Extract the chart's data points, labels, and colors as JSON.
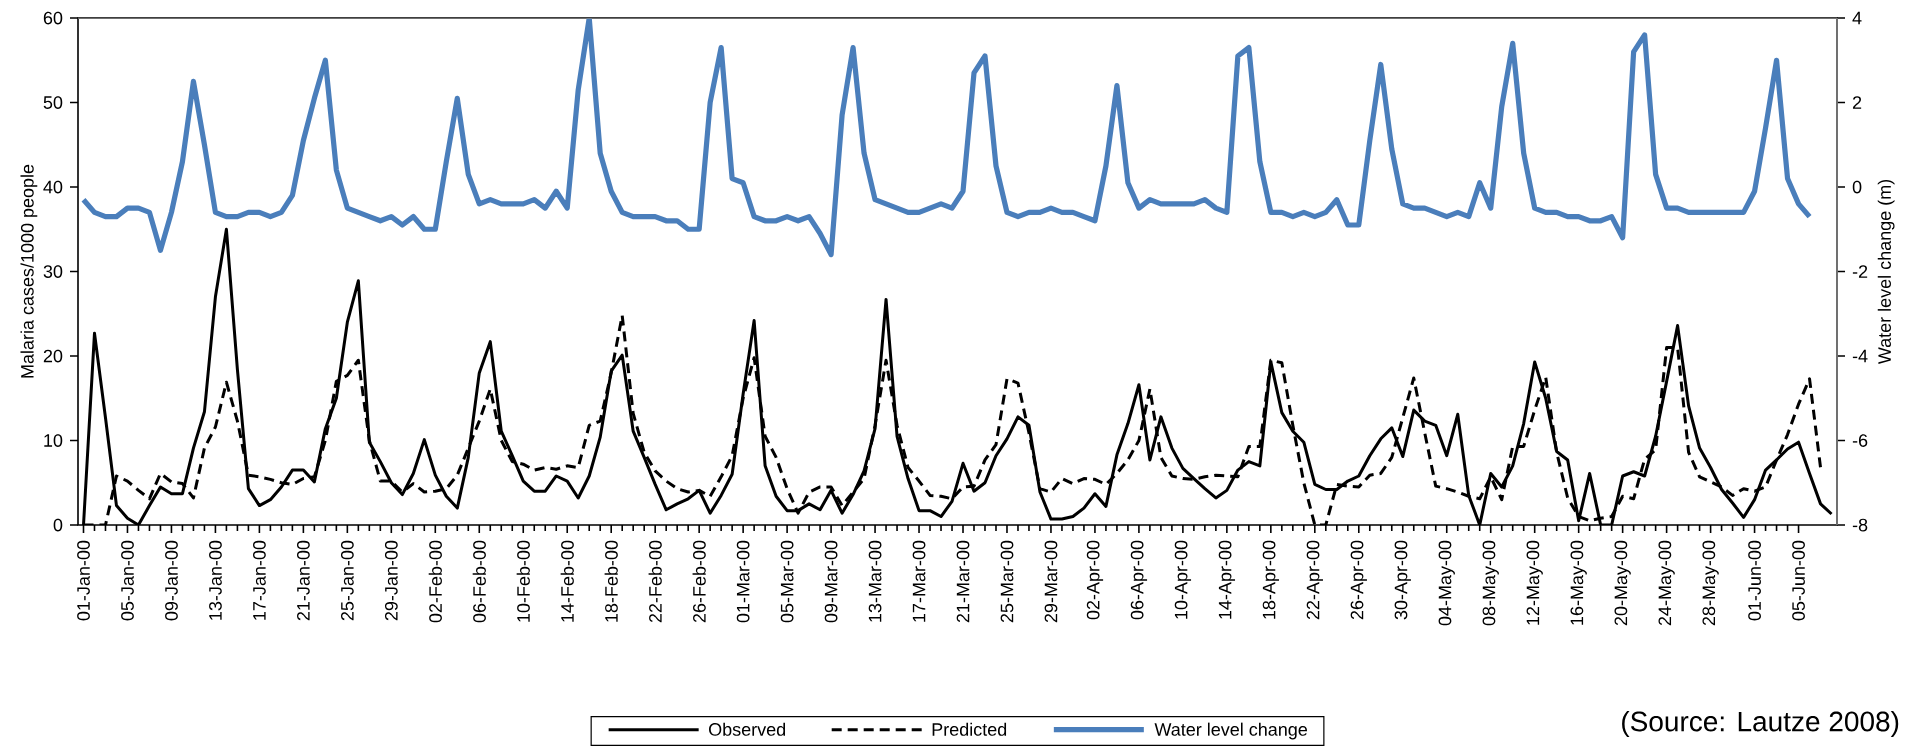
{
  "chart_data": {
    "type": "line",
    "xlabel": null,
    "ylabel": "Malaria cases/1000 people",
    "y2label": "Water level change (m)",
    "annotations": [
      "(Source: Lautze 2008)"
    ],
    "legend": "bottom",
    "xlim": [
      "1999-12-31T12:00",
      "2000-06-08T12:00"
    ],
    "ylim": [
      0,
      60
    ],
    "yticks": [
      0,
      10,
      20,
      30,
      40,
      50,
      60
    ],
    "y2lim": [
      -8,
      4
    ],
    "y2ticks": [
      -8,
      -6,
      -4,
      -2,
      0,
      2,
      4
    ],
    "xticks": [
      {
        "value": "2000-01-01",
        "label": "01-Jan-00"
      },
      {
        "value": "2000-01-05",
        "label": "05-Jan-00"
      },
      {
        "value": "2000-01-09",
        "label": "09-Jan-00"
      },
      {
        "value": "2000-01-13",
        "label": "13-Jan-00"
      },
      {
        "value": "2000-01-17",
        "label": "17-Jan-00"
      },
      {
        "value": "2000-01-21",
        "label": "21-Jan-00"
      },
      {
        "value": "2000-01-25",
        "label": "25-Jan-00"
      },
      {
        "value": "2000-01-29",
        "label": "29-Jan-00"
      },
      {
        "value": "2000-02-02",
        "label": "02-Feb-00"
      },
      {
        "value": "2000-02-06",
        "label": "06-Feb-00"
      },
      {
        "value": "2000-02-10",
        "label": "10-Feb-00"
      },
      {
        "value": "2000-02-14",
        "label": "14-Feb-00"
      },
      {
        "value": "2000-02-18",
        "label": "18-Feb-00"
      },
      {
        "value": "2000-02-22",
        "label": "22-Feb-00"
      },
      {
        "value": "2000-02-26",
        "label": "26-Feb-00"
      },
      {
        "value": "2000-03-01",
        "label": "01-Mar-00"
      },
      {
        "value": "2000-03-05",
        "label": "05-Mar-00"
      },
      {
        "value": "2000-03-09",
        "label": "09-Mar-00"
      },
      {
        "value": "2000-03-13",
        "label": "13-Mar-00"
      },
      {
        "value": "2000-03-17",
        "label": "17-Mar-00"
      },
      {
        "value": "2000-03-21",
        "label": "21-Mar-00"
      },
      {
        "value": "2000-03-25",
        "label": "25-Mar-00"
      },
      {
        "value": "2000-03-29",
        "label": "29-Mar-00"
      },
      {
        "value": "2000-04-02",
        "label": "02-Apr-00"
      },
      {
        "value": "2000-04-06",
        "label": "06-Apr-00"
      },
      {
        "value": "2000-04-10",
        "label": "10-Apr-00"
      },
      {
        "value": "2000-04-14",
        "label": "14-Apr-00"
      },
      {
        "value": "2000-04-18",
        "label": "18-Apr-00"
      },
      {
        "value": "2000-04-22",
        "label": "22-Apr-00"
      },
      {
        "value": "2000-04-26",
        "label": "26-Apr-00"
      },
      {
        "value": "2000-04-30",
        "label": "30-Apr-00"
      },
      {
        "value": "2000-05-04",
        "label": "04-May-00"
      },
      {
        "value": "2000-05-08",
        "label": "08-May-00"
      },
      {
        "value": "2000-05-12",
        "label": "12-May-00"
      },
      {
        "value": "2000-05-16",
        "label": "16-May-00"
      },
      {
        "value": "2000-05-20",
        "label": "20-May-00"
      },
      {
        "value": "2000-05-24",
        "label": "24-May-00"
      },
      {
        "value": "2000-05-28",
        "label": "28-May-00"
      },
      {
        "value": "2000-06-01",
        "label": "01-Jun-00"
      },
      {
        "value": "2000-06-05",
        "label": "05-Jun-00"
      }
    ],
    "x": [
      "2000-01-01",
      "2000-01-02",
      "2000-01-03",
      "2000-01-04",
      "2000-01-05",
      "2000-01-06",
      "2000-01-07",
      "2000-01-08",
      "2000-01-09",
      "2000-01-10",
      "2000-01-11",
      "2000-01-12",
      "2000-01-13",
      "2000-01-14",
      "2000-01-15",
      "2000-01-16",
      "2000-01-17",
      "2000-01-18",
      "2000-01-19",
      "2000-01-20",
      "2000-01-21",
      "2000-01-22",
      "2000-01-23",
      "2000-01-24",
      "2000-01-25",
      "2000-01-26",
      "2000-01-27",
      "2000-01-28",
      "2000-01-29",
      "2000-01-30",
      "2000-01-31",
      "2000-02-01",
      "2000-02-02",
      "2000-02-03",
      "2000-02-04",
      "2000-02-05",
      "2000-02-06",
      "2000-02-07",
      "2000-02-08",
      "2000-02-09",
      "2000-02-10",
      "2000-02-11",
      "2000-02-12",
      "2000-02-13",
      "2000-02-14",
      "2000-02-15",
      "2000-02-16",
      "2000-02-17",
      "2000-02-18",
      "2000-02-19",
      "2000-02-20",
      "2000-02-21",
      "2000-02-22",
      "2000-02-23",
      "2000-02-24",
      "2000-02-25",
      "2000-02-26",
      "2000-02-27",
      "2000-02-28",
      "2000-02-29",
      "2000-03-01",
      "2000-03-02",
      "2000-03-03",
      "2000-03-04",
      "2000-03-05",
      "2000-03-06",
      "2000-03-07",
      "2000-03-08",
      "2000-03-09",
      "2000-03-10",
      "2000-03-11",
      "2000-03-12",
      "2000-03-13",
      "2000-03-14",
      "2000-03-15",
      "2000-03-16",
      "2000-03-17",
      "2000-03-18",
      "2000-03-19",
      "2000-03-20",
      "2000-03-21",
      "2000-03-22",
      "2000-03-23",
      "2000-03-24",
      "2000-03-25",
      "2000-03-26",
      "2000-03-27",
      "2000-03-28",
      "2000-03-29",
      "2000-03-30",
      "2000-03-31",
      "2000-04-01",
      "2000-04-02",
      "2000-04-03",
      "2000-04-04",
      "2000-04-05",
      "2000-04-06",
      "2000-04-07",
      "2000-04-08",
      "2000-04-09",
      "2000-04-10",
      "2000-04-11",
      "2000-04-12",
      "2000-04-13",
      "2000-04-14",
      "2000-04-15",
      "2000-04-16",
      "2000-04-17",
      "2000-04-18",
      "2000-04-19",
      "2000-04-20",
      "2000-04-21",
      "2000-04-22",
      "2000-04-23",
      "2000-04-24",
      "2000-04-25",
      "2000-04-26",
      "2000-04-27",
      "2000-04-28",
      "2000-04-29",
      "2000-04-30",
      "2000-05-01",
      "2000-05-02",
      "2000-05-03",
      "2000-05-04",
      "2000-05-05",
      "2000-05-06",
      "2000-05-07",
      "2000-05-08",
      "2000-05-09",
      "2000-05-10",
      "2000-05-11",
      "2000-05-12",
      "2000-05-13",
      "2000-05-14",
      "2000-05-15",
      "2000-05-16",
      "2000-05-17",
      "2000-05-18",
      "2000-05-19",
      "2000-05-20",
      "2000-05-21",
      "2000-05-22",
      "2000-05-23",
      "2000-05-24",
      "2000-05-25",
      "2000-05-26",
      "2000-05-27",
      "2000-05-28",
      "2000-05-29",
      "2000-05-30",
      "2000-05-31",
      "2000-06-01",
      "2000-06-02",
      "2000-06-03",
      "2000-06-04",
      "2000-06-05",
      "2000-06-06",
      "2000-06-07",
      "2000-06-08"
    ],
    "series": [
      {
        "name": "Observed",
        "color": "#000000",
        "line_style": "solid",
        "values": [
          0,
          22.7,
          12.7,
          2.3,
          0.8,
          0,
          2.3,
          4.5,
          3.7,
          3.7,
          9.1,
          13.4,
          27,
          35,
          18.4,
          4.3,
          2.3,
          3.0,
          4.5,
          6.5,
          6.5,
          5.1,
          11.4,
          15,
          24,
          28.9,
          9.8,
          7.5,
          5,
          3.6,
          6.1,
          10.1,
          5.9,
          3.4,
          2.0,
          8,
          18,
          21.7,
          11.1,
          8.2,
          5.2,
          4.0,
          4.0,
          5.8,
          5.2,
          3.2,
          5.8,
          10.4,
          18.2,
          20.1,
          11.1,
          8,
          4.8,
          1.8,
          2.5,
          3.1,
          4.1,
          1.4,
          3.5,
          6,
          15.5,
          24.2,
          7,
          3.4,
          1.7,
          1.7,
          2.5,
          1.8,
          4.1,
          1.4,
          3.6,
          6.4,
          11.4,
          26.7,
          10.5,
          5.5,
          1.7,
          1.7,
          1.0,
          2.8,
          7.3,
          4.0,
          5,
          8.2,
          10.2,
          12.8,
          11.8,
          3.9,
          0.7,
          0.7,
          1.0,
          2.0,
          3.7,
          2.2,
          8.3,
          12,
          16.6,
          7.7,
          12.8,
          9.1,
          6.7,
          5.5,
          4.3,
          3.2,
          4.1,
          6.5,
          7.5,
          7,
          19.3,
          13.3,
          11.1,
          9.8,
          4.8,
          4.2,
          4.2,
          5.2,
          5.8,
          8.2,
          10.2,
          11.5,
          8.1,
          13.6,
          12.3,
          11.8,
          8.2,
          13.1,
          3.5,
          0,
          6.1,
          4.5,
          7,
          12,
          19.3,
          15,
          8.7,
          7.7,
          0.5,
          6.1,
          0,
          0,
          5.8,
          6.3,
          5.8,
          10.5,
          17,
          23.6,
          14.1,
          9.1,
          6.8,
          4.2,
          2.6,
          0.9,
          3.0,
          6.5,
          7.7,
          9,
          9.8,
          6.1,
          2.5,
          1.3
        ]
      },
      {
        "name": "Predicted",
        "color": "#000000",
        "line_style": "dashed",
        "values": [
          0,
          0,
          0,
          5.8,
          5.2,
          4.1,
          3.1,
          6.1,
          5.1,
          4.9,
          3.2,
          9.1,
          11.6,
          16.9,
          12.3,
          5.9,
          5.7,
          5.4,
          5.0,
          4.8,
          5.5,
          5.7,
          10,
          17,
          17.7,
          19.5,
          10,
          5.2,
          5.2,
          3.9,
          4.9,
          3.9,
          4.0,
          4.3,
          5.9,
          9.1,
          12.3,
          16.1,
          10,
          7.5,
          7.2,
          6.5,
          6.8,
          6.6,
          7,
          6.8,
          11.8,
          12.3,
          18,
          24.8,
          13.2,
          8.6,
          6.4,
          5.2,
          4.3,
          3.9,
          4.1,
          3.4,
          5.7,
          8.2,
          15,
          19.8,
          10.5,
          8,
          4.3,
          1.4,
          3.9,
          4.5,
          4.5,
          2.3,
          3.9,
          5.5,
          11.8,
          19.5,
          11.8,
          6.8,
          5.2,
          3.5,
          3.4,
          3.1,
          4.5,
          4.6,
          7.7,
          9.5,
          17.3,
          16.8,
          10.9,
          4.3,
          3.9,
          5.5,
          4.9,
          5.5,
          5.4,
          4.8,
          6.1,
          7.7,
          10,
          16.1,
          8,
          5.8,
          5.5,
          5.4,
          5.7,
          5.9,
          5.8,
          5.7,
          9.3,
          9.3,
          19.5,
          19.2,
          11.8,
          5,
          0,
          0,
          4.8,
          4.6,
          4.5,
          5.9,
          6.1,
          8,
          12.7,
          17.4,
          10.9,
          4.6,
          4.3,
          3.9,
          3.4,
          3.1,
          5.7,
          3.0,
          9.3,
          9.3,
          13.6,
          17.5,
          8.6,
          3.2,
          1.0,
          0.5,
          0.8,
          1.0,
          3.4,
          3.1,
          7.8,
          8.9,
          21,
          21,
          8.6,
          5.7,
          5.1,
          4.5,
          3.5,
          4.3,
          4.0,
          4.5,
          7.7,
          10.7,
          14.3,
          17.3,
          6.8,
          null
        ]
      },
      {
        "name": "Water level change",
        "color": "#4a7ebb",
        "line_style": "solid",
        "axis": "y2",
        "values": [
          -0.3,
          -0.6,
          -0.7,
          -0.7,
          -0.5,
          -0.5,
          -0.6,
          -1.5,
          -0.6,
          0.6,
          2.5,
          1.0,
          -0.6,
          -0.7,
          -0.7,
          -0.6,
          -0.6,
          -0.7,
          -0.6,
          -0.2,
          1.1,
          2.1,
          3.0,
          0.4,
          -0.5,
          -0.6,
          -0.7,
          -0.8,
          -0.7,
          -0.9,
          -0.7,
          -1.0,
          -1.0,
          0.6,
          2.1,
          0.3,
          -0.4,
          -0.3,
          -0.4,
          -0.4,
          -0.4,
          -0.3,
          -0.5,
          -0.1,
          -0.5,
          2.3,
          4.0,
          0.8,
          -0.1,
          -0.6,
          -0.7,
          -0.7,
          -0.7,
          -0.8,
          -0.8,
          -1.0,
          -1.0,
          2.0,
          3.3,
          0.2,
          0.1,
          -0.7,
          -0.8,
          -0.8,
          -0.7,
          -0.8,
          -0.7,
          -1.1,
          -1.6,
          1.7,
          3.3,
          0.8,
          -0.3,
          -0.4,
          -0.5,
          -0.6,
          -0.6,
          -0.5,
          -0.4,
          -0.5,
          -0.1,
          2.7,
          3.1,
          0.5,
          -0.6,
          -0.7,
          -0.6,
          -0.6,
          -0.5,
          -0.6,
          -0.6,
          -0.7,
          -0.8,
          0.5,
          2.4,
          0.1,
          -0.5,
          -0.3,
          -0.4,
          -0.4,
          -0.4,
          -0.4,
          -0.3,
          -0.5,
          -0.6,
          3.1,
          3.3,
          0.6,
          -0.6,
          -0.6,
          -0.7,
          -0.6,
          -0.7,
          -0.6,
          -0.3,
          -0.9,
          -0.9,
          1.1,
          2.9,
          0.9,
          -0.4,
          -0.5,
          -0.5,
          -0.6,
          -0.7,
          -0.6,
          -0.7,
          0.1,
          -0.5,
          1.9,
          3.4,
          0.8,
          -0.5,
          -0.6,
          -0.6,
          -0.7,
          -0.7,
          -0.8,
          -0.8,
          -0.7,
          -1.2,
          3.2,
          3.6,
          0.3,
          -0.5,
          -0.5,
          -0.6,
          -0.6,
          -0.6,
          -0.6,
          -0.6,
          -0.6,
          -0.1,
          1.4,
          3.0,
          0.2,
          -0.4,
          -0.7,
          null,
          null
        ]
      }
    ]
  }
}
